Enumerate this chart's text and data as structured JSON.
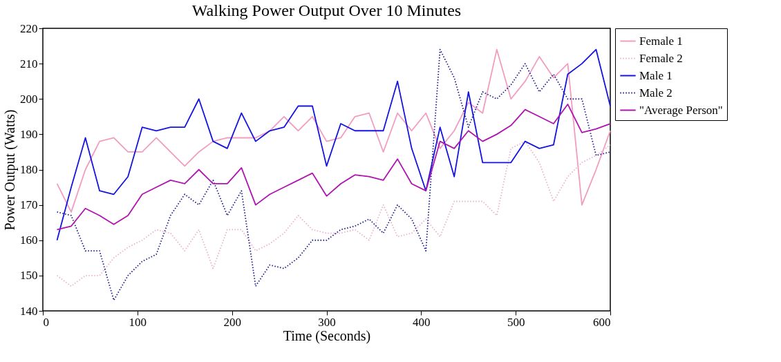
{
  "chart_data": {
    "type": "line",
    "title": "Walking Power Output Over 10 Minutes",
    "xlabel": "Time (Seconds)",
    "ylabel": "Power Output (Watts)",
    "x": [
      15,
      30,
      45,
      60,
      75,
      90,
      105,
      120,
      135,
      150,
      165,
      180,
      195,
      210,
      225,
      240,
      255,
      270,
      285,
      300,
      315,
      330,
      345,
      360,
      375,
      390,
      405,
      420,
      435,
      450,
      465,
      480,
      495,
      510,
      525,
      540,
      555,
      570,
      585,
      600
    ],
    "xlim": [
      0,
      600
    ],
    "xticks": [
      0,
      100,
      200,
      300,
      400,
      500,
      600
    ],
    "ylim": [
      140,
      220
    ],
    "yticks": [
      140,
      150,
      160,
      170,
      180,
      190,
      200,
      210,
      220
    ],
    "grid": false,
    "legend": "right",
    "marker": "none",
    "series": [
      {
        "name": "Female 1",
        "color": "#f29cc0",
        "line_style": "solid",
        "values": [
          176,
          168,
          180,
          188,
          189,
          185,
          185,
          189,
          185,
          181,
          185,
          188,
          189,
          189,
          189,
          191,
          195,
          191,
          195,
          188,
          189,
          195,
          196,
          185,
          196,
          191,
          196,
          186,
          191,
          199,
          196,
          214,
          200,
          205,
          212,
          206,
          210,
          170,
          180,
          191
        ]
      },
      {
        "name": "Female 2",
        "color": "#e8b0cc",
        "line_style": "dotted",
        "values": [
          150,
          147,
          150,
          150,
          155,
          158,
          160,
          163,
          162,
          157,
          163,
          152,
          163,
          163,
          157,
          159,
          162,
          167,
          163,
          162,
          162,
          163,
          160,
          170,
          161,
          162,
          166,
          161,
          171,
          171,
          171,
          167,
          186,
          188,
          182,
          171,
          178,
          182,
          184,
          187
        ]
      },
      {
        "name": "Male 1",
        "color": "#1414e0",
        "line_style": "solid",
        "values": [
          160,
          175,
          189,
          174,
          173,
          178,
          192,
          191,
          192,
          192,
          200,
          188,
          186,
          196,
          188,
          191,
          192,
          198,
          198,
          181,
          193,
          191,
          191,
          191,
          205,
          186,
          174,
          192,
          178,
          202,
          182,
          182,
          182,
          188,
          186,
          187,
          207,
          210,
          214,
          198
        ]
      },
      {
        "name": "Male 2",
        "color": "#1a1a8c",
        "line_style": "dotted",
        "values": [
          168,
          167,
          157,
          157,
          143,
          150,
          154,
          156,
          167,
          173,
          170,
          177,
          167,
          174,
          147,
          153,
          152,
          155,
          160,
          160,
          163,
          164,
          166,
          162,
          170,
          166,
          157,
          214,
          206,
          192,
          202,
          200,
          204,
          210,
          202,
          207,
          200,
          200,
          184,
          185
        ]
      },
      {
        "name": "\"Average Person\"",
        "color": "#b014b0",
        "line_style": "solid",
        "values": [
          163,
          164,
          169,
          167,
          164.5,
          167,
          173,
          175,
          177,
          176,
          180,
          176,
          176,
          180.5,
          170,
          173,
          175,
          177,
          179,
          172.5,
          176,
          178.5,
          178,
          177,
          183,
          176,
          174,
          188,
          186,
          191,
          188,
          190,
          192.5,
          197,
          195,
          193,
          198.5,
          190.5,
          191.5,
          193
        ]
      }
    ]
  }
}
